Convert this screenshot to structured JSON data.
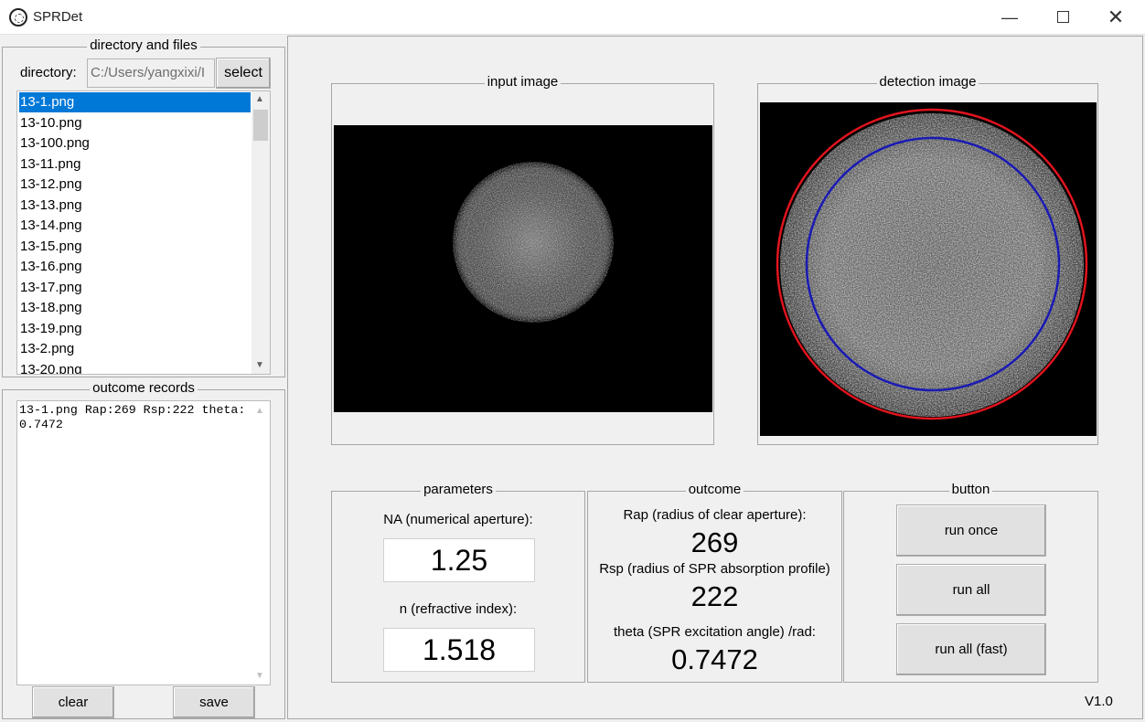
{
  "window": {
    "title": "SPRDet",
    "min_glyph": "—",
    "close_glyph": "✕"
  },
  "directory_panel": {
    "legend": "directory and files",
    "directory_label": "directory:",
    "directory_value": "C:/Users/yangxixi/I",
    "select_label": "select",
    "files": [
      "13-1.png",
      "13-10.png",
      "13-100.png",
      "13-11.png",
      "13-12.png",
      "13-13.png",
      "13-14.png",
      "13-15.png",
      "13-16.png",
      "13-17.png",
      "13-18.png",
      "13-19.png",
      "13-2.png",
      "13-20.png"
    ],
    "selected_file": "13-1.png"
  },
  "records_panel": {
    "legend": "outcome records",
    "text": "13-1.png Rap:269 Rsp:222 theta:0.7472",
    "clear_label": "clear",
    "save_label": "save"
  },
  "input_image": {
    "legend": "input image"
  },
  "detection_image": {
    "legend": "detection image",
    "outer_circle_color": "#e0141e",
    "inner_circle_color": "#1a1ab4"
  },
  "parameters": {
    "legend": "parameters",
    "na_label": "NA (numerical aperture):",
    "na_value": "1.25",
    "n_label": "n (refractive index):",
    "n_value": "1.518"
  },
  "outcome": {
    "legend": "outcome",
    "rap_label": "Rap (radius of clear aperture):",
    "rap_value": "269",
    "rsp_label": "Rsp (radius of SPR absorption profile)",
    "rsp_value": "222",
    "theta_label": "theta (SPR excitation angle) /rad:",
    "theta_value": "0.7472"
  },
  "buttons": {
    "legend": "button",
    "run_once": "run once",
    "run_all": "run all",
    "run_all_fast": "run all (fast)"
  },
  "version": "V1.0"
}
